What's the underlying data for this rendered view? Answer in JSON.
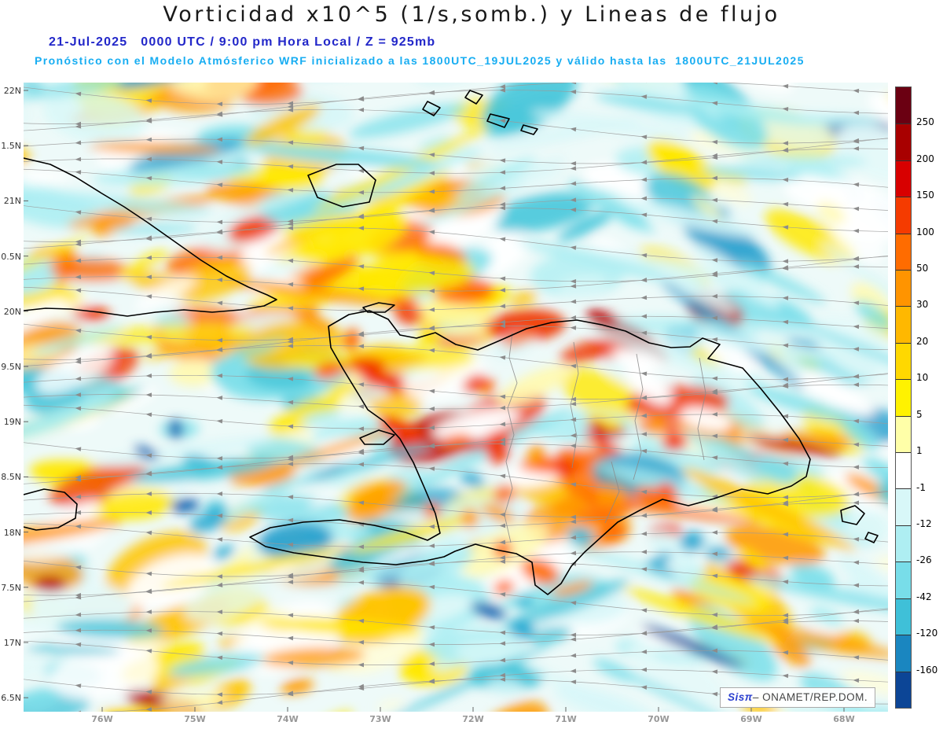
{
  "header": {
    "title": "Vorticidad x10^5 (1/s,somb.) y Lineas de flujo",
    "subtitle": "21-Jul-2025   0000 UTC / 9:00 pm Hora Local / Z = 925mb",
    "forecast_line": "Pronóstico con el Modelo Atmósferico WRF inicializado a las 1800UTC_19JUL2025 y válido hasta las  1800UTC_21JUL2025"
  },
  "watermark": {
    "prefix": "Sisπ",
    "suffix": "– ONAMET/REP.DOM."
  },
  "chart_data": {
    "type": "heatmap",
    "title": "Vorticidad x10^5 (1/s,somb.) y Lineas de flujo",
    "variable": "Vorticidad x10^5 (1/s)",
    "overlay": "Lineas de flujo (streamlines with arrowheads)",
    "level": "925mb",
    "valid_time": "21-Jul-2025 0000 UTC / 9:00 pm Hora Local",
    "model": "WRF",
    "initialized": "1800UTC_19JUL2025",
    "valid_until": "1800UTC_21JUL2025",
    "region": "Hispaniola / Caribbean (ONAMET REP.DOM.)",
    "x_tick_labels": [
      "76W",
      "75W",
      "74W",
      "73W",
      "72W",
      "71W",
      "70W",
      "69W",
      "68W"
    ],
    "y_tick_labels": [
      "22N",
      "1.5N",
      "21N",
      "0.5N",
      "20N",
      "9.5N",
      "19N",
      "8.5N",
      "18N",
      "7.5N",
      "17N",
      "6.5N"
    ],
    "grid": false,
    "legend_position": "right",
    "colorbar": {
      "labels": [
        "250",
        "200",
        "150",
        "100",
        "50",
        "30",
        "20",
        "10",
        "5",
        "1",
        "-1",
        "-12",
        "-26",
        "-42",
        "-120",
        "-160"
      ],
      "colors": [
        "#6b0012",
        "#a80000",
        "#d80000",
        "#f53b00",
        "#ff6c00",
        "#ff9400",
        "#ffb800",
        "#ffd800",
        "#fff200",
        "#ffffa8",
        "#ffffff",
        "#d8f7f8",
        "#aeeef2",
        "#78dde9",
        "#3fc0d8",
        "#1a86c0",
        "#0c4596"
      ]
    }
  }
}
